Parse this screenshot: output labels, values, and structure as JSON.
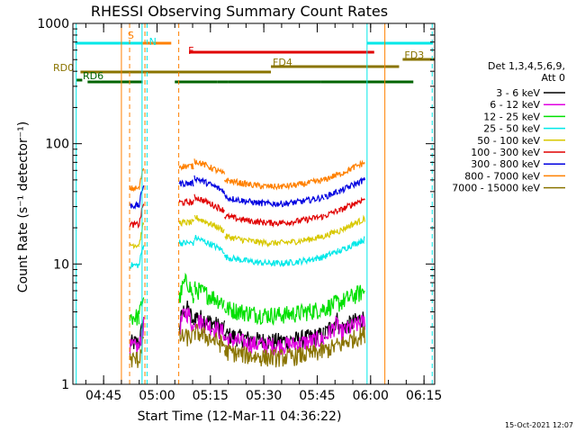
{
  "chart_data": {
    "type": "line",
    "title": "RHESSI Observing Summary Count Rates",
    "xlabel": "Start Time (12-Mar-11 04:36:22)",
    "ylabel": "Count Rate (s⁻¹ detector⁻¹)",
    "yscale": "log",
    "ylim": [
      1,
      1000
    ],
    "xlim_minutes": [
      36.37,
      138.0
    ],
    "x_ticks": [
      {
        "minute": 45,
        "label": "04:45"
      },
      {
        "minute": 60,
        "label": "05:00"
      },
      {
        "minute": 75,
        "label": "05:15"
      },
      {
        "minute": 90,
        "label": "05:30"
      },
      {
        "minute": 105,
        "label": "05:45"
      },
      {
        "minute": 120,
        "label": "06:00"
      },
      {
        "minute": 135,
        "label": "06:15"
      }
    ],
    "y_ticks": [
      {
        "value": 1,
        "label": "1"
      },
      {
        "value": 10,
        "label": "10"
      },
      {
        "value": 100,
        "label": "100"
      },
      {
        "value": 1000,
        "label": "1000"
      }
    ],
    "legend_header": [
      "Det 1,3,4,5,6,9,",
      "Att 0"
    ],
    "series": [
      {
        "name": "3 - 6 keV",
        "color": "#000000",
        "plateau": 2.6
      },
      {
        "name": "6 - 12 keV",
        "color": "#e000e0",
        "plateau": 2.4
      },
      {
        "name": "12 - 25 keV",
        "color": "#00e000",
        "plateau": 4.3
      },
      {
        "name": "25 - 50 keV",
        "color": "#00e8e8",
        "plateau": 11.5
      },
      {
        "name": "50 - 100 keV",
        "color": "#d8c800",
        "plateau": 17
      },
      {
        "name": "100 - 300 keV",
        "color": "#e00000",
        "plateau": 25
      },
      {
        "name": "300 - 800 keV",
        "color": "#0000e0",
        "plateau": 36
      },
      {
        "name": "800 - 7000 keV",
        "color": "#ff8000",
        "plateau": 50
      },
      {
        "name": "7000 - 15000 keV",
        "color": "#8a7400",
        "plateau": 1.9
      }
    ],
    "segments": [
      {
        "start": 38.5,
        "end": 92,
        "tag": "RD0",
        "color": "#8a7400"
      },
      {
        "start": 92,
        "end": 128,
        "tag": "FD4",
        "color": "#8a7400"
      },
      {
        "start": 129,
        "end": 138,
        "tag": "FD3",
        "color": "#8a7400"
      },
      {
        "start": 37.4,
        "end": 39,
        "tag": "RD6",
        "color": "#006400"
      }
    ],
    "segment_bars": [
      {
        "start": 40.5,
        "end": 56,
        "color": "#006400",
        "level": "low"
      },
      {
        "start": 65,
        "end": 77,
        "color": "#006400",
        "level": "low"
      },
      {
        "start": 77,
        "end": 80,
        "color": "#006400",
        "level": "low"
      },
      {
        "start": 80,
        "end": 106,
        "color": "#006400",
        "level": "low"
      },
      {
        "start": 106,
        "end": 132,
        "color": "#006400",
        "level": "low"
      },
      {
        "start": 37,
        "end": 56,
        "color": "#00e8e8",
        "level": "top"
      },
      {
        "start": 56,
        "end": 64,
        "color": "#ff8000",
        "level": "top"
      },
      {
        "start": 119,
        "end": 137.5,
        "color": "#00e8e8",
        "level": "top"
      },
      {
        "start": 69,
        "end": 121,
        "color": "#e00000",
        "level": "mid"
      }
    ],
    "flags": [
      {
        "tag": "S",
        "minute": 51,
        "color": "#ff8000"
      },
      {
        "tag": "N",
        "minute": 57,
        "color": "#00e8e8"
      },
      {
        "tag": "F",
        "minute": 68,
        "color": "#e00000"
      }
    ],
    "vlines": [
      {
        "minute": 37.3,
        "color": "#00e8e8",
        "dash": false
      },
      {
        "minute": 50.0,
        "color": "#ff8000",
        "dash": false
      },
      {
        "minute": 52.3,
        "color": "#ff8000",
        "dash": true
      },
      {
        "minute": 55.8,
        "color": "#00e8e8",
        "dash": false
      },
      {
        "minute": 56.6,
        "color": "#ff8000",
        "dash": true
      },
      {
        "minute": 57.2,
        "color": "#00e8e8",
        "dash": true
      },
      {
        "minute": 66.1,
        "color": "#ff8000",
        "dash": true
      },
      {
        "minute": 119.0,
        "color": "#00e8e8",
        "dash": false
      },
      {
        "minute": 124.0,
        "color": "#ff8000",
        "dash": false
      },
      {
        "minute": 137.3,
        "color": "#00e8e8",
        "dash": true
      }
    ]
  },
  "footer": {
    "timestamp": "15-Oct-2021 12:07"
  }
}
